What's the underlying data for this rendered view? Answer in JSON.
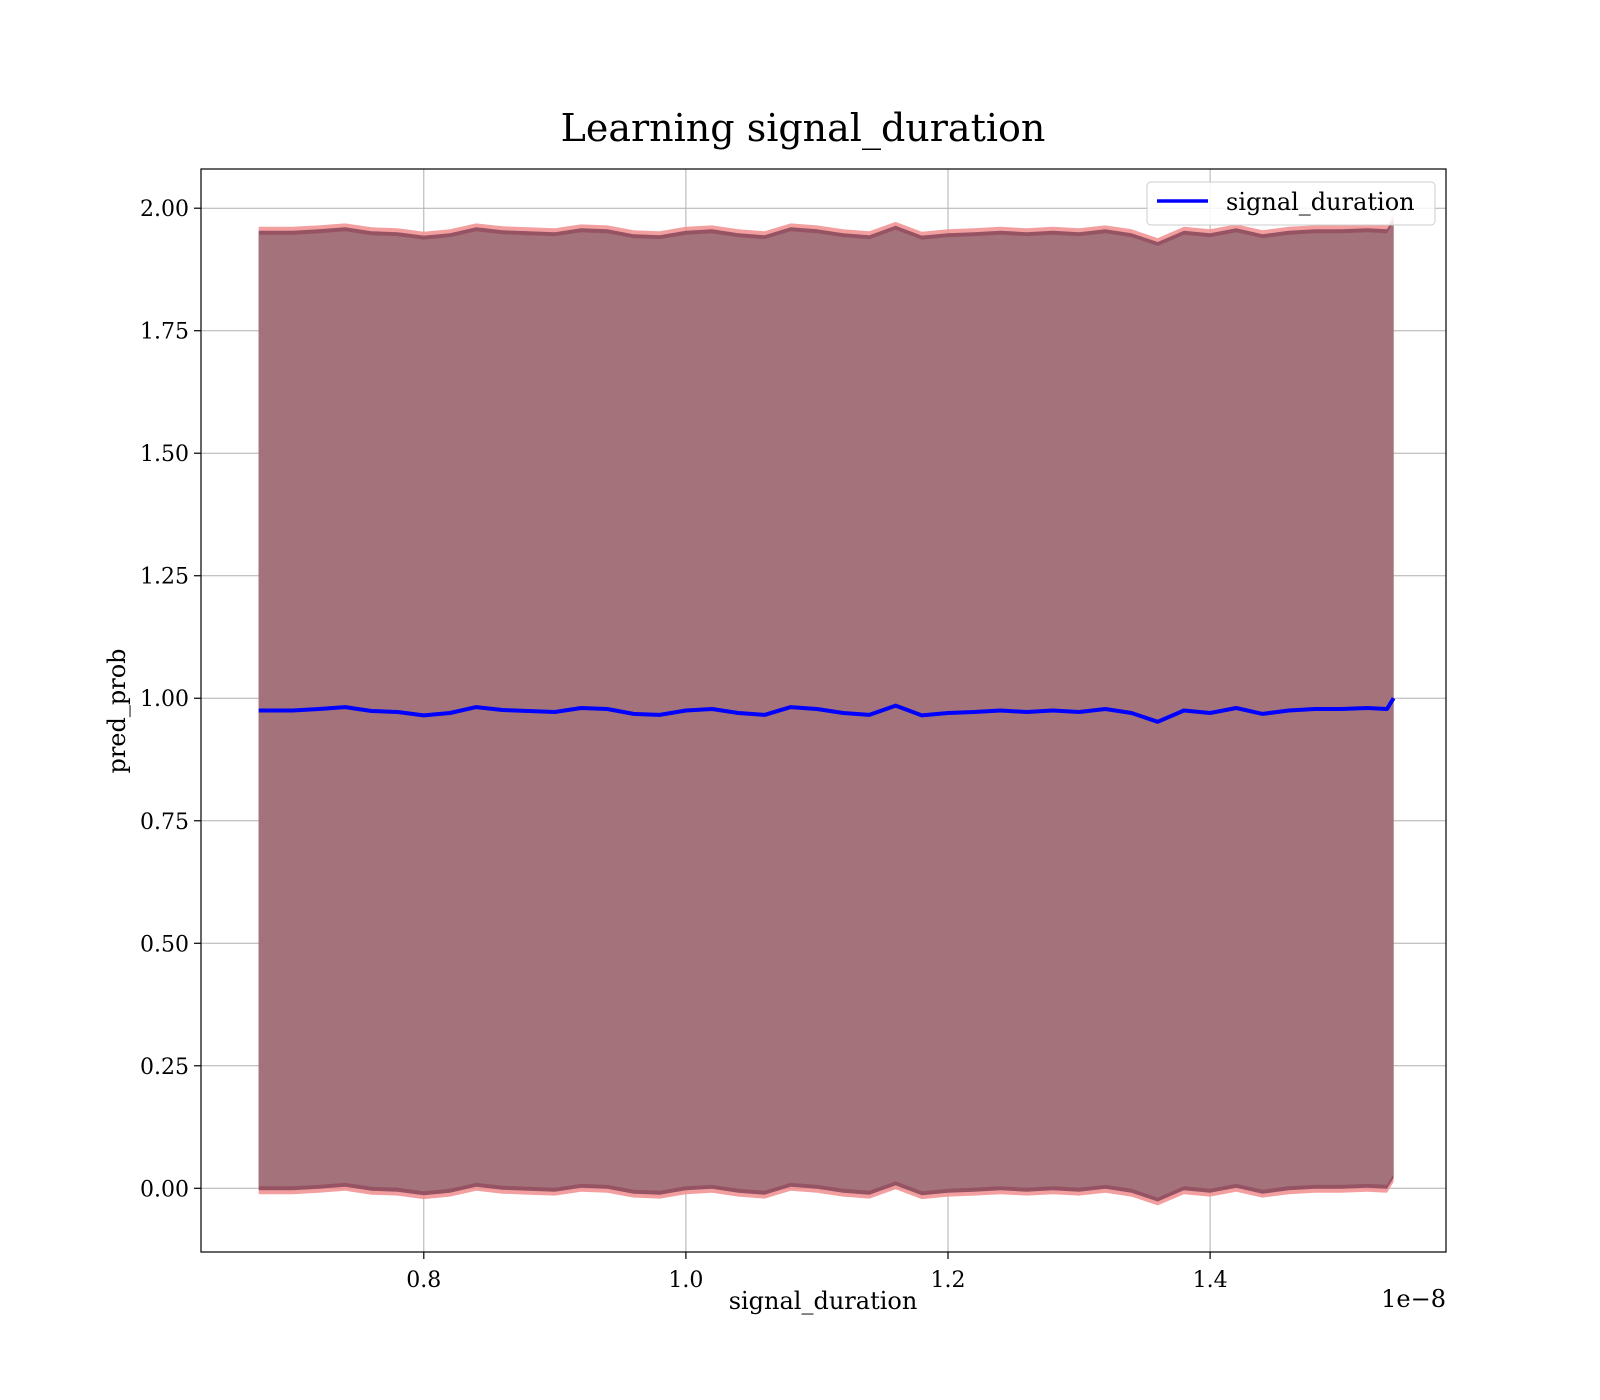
{
  "chart_data": {
    "type": "line",
    "title": "Learning signal_duration",
    "xlabel": "signal_duration",
    "ylabel": "pred_prob",
    "x_offset_label": "1e−8",
    "xlim": [
      0.63,
      1.58
    ],
    "ylim": [
      -0.13,
      2.08
    ],
    "x_ticks": [
      {
        "value": 0.8,
        "label": "0.8"
      },
      {
        "value": 1.0,
        "label": "1.0"
      },
      {
        "value": 1.2,
        "label": "1.2"
      },
      {
        "value": 1.4,
        "label": "1.4"
      }
    ],
    "y_ticks": [
      {
        "value": 0.0,
        "label": "0.00"
      },
      {
        "value": 0.25,
        "label": "0.25"
      },
      {
        "value": 0.5,
        "label": "0.50"
      },
      {
        "value": 0.75,
        "label": "0.75"
      },
      {
        "value": 1.0,
        "label": "1.00"
      },
      {
        "value": 1.25,
        "label": "1.25"
      },
      {
        "value": 1.5,
        "label": "1.50"
      },
      {
        "value": 1.75,
        "label": "1.75"
      },
      {
        "value": 2.0,
        "label": "2.00"
      }
    ],
    "grid": true,
    "legend": {
      "placement": "top-right",
      "entries": [
        "signal_duration"
      ]
    },
    "band_half_width": 0.975,
    "colors": {
      "line": "#0000ff",
      "band_outer": "#f28e8e",
      "band_inner": "#8b4a5c",
      "band_core": "#a3727a"
    },
    "series": [
      {
        "name": "signal_duration",
        "x": [
          0.674,
          0.7,
          0.72,
          0.74,
          0.76,
          0.78,
          0.8,
          0.82,
          0.84,
          0.86,
          0.88,
          0.9,
          0.92,
          0.94,
          0.96,
          0.98,
          1.0,
          1.02,
          1.04,
          1.06,
          1.08,
          1.1,
          1.12,
          1.14,
          1.16,
          1.18,
          1.2,
          1.22,
          1.24,
          1.26,
          1.28,
          1.3,
          1.32,
          1.34,
          1.36,
          1.38,
          1.4,
          1.42,
          1.44,
          1.46,
          1.48,
          1.5,
          1.52,
          1.535,
          1.54
        ],
        "y": [
          0.975,
          0.975,
          0.978,
          0.982,
          0.974,
          0.972,
          0.965,
          0.97,
          0.982,
          0.976,
          0.974,
          0.972,
          0.98,
          0.978,
          0.968,
          0.966,
          0.975,
          0.978,
          0.97,
          0.966,
          0.982,
          0.978,
          0.97,
          0.966,
          0.985,
          0.965,
          0.97,
          0.972,
          0.975,
          0.972,
          0.975,
          0.972,
          0.978,
          0.97,
          0.952,
          0.975,
          0.97,
          0.98,
          0.968,
          0.975,
          0.978,
          0.978,
          0.98,
          0.978,
          1.0
        ]
      }
    ]
  }
}
